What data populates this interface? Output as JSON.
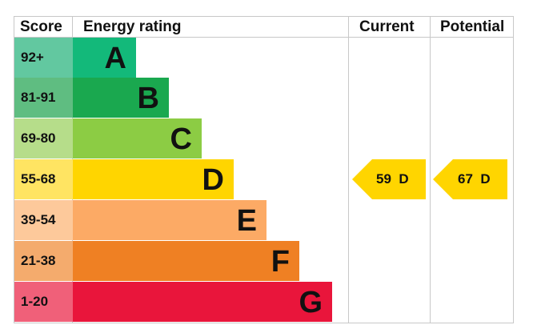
{
  "headers": {
    "score": "Score",
    "energy_rating": "Energy rating",
    "current": "Current",
    "potential": "Potential"
  },
  "bands": [
    {
      "score": "92+",
      "letter": "A",
      "color": "#13b97a",
      "score_bg": "#62c8a0"
    },
    {
      "score": "81-91",
      "letter": "B",
      "color": "#1aa84f",
      "score_bg": "#5fbd81"
    },
    {
      "score": "69-80",
      "letter": "C",
      "color": "#8ccc44",
      "score_bg": "#b6dd8a"
    },
    {
      "score": "55-68",
      "letter": "D",
      "color": "#ffd500",
      "score_bg": "#ffe462"
    },
    {
      "score": "39-54",
      "letter": "E",
      "color": "#fcaa65",
      "score_bg": "#fdc99b"
    },
    {
      "score": "21-38",
      "letter": "F",
      "color": "#ef8023",
      "score_bg": "#f4ab6d"
    },
    {
      "score": "1-20",
      "letter": "G",
      "color": "#e9153b",
      "score_bg": "#f06079"
    }
  ],
  "current": {
    "value": 59,
    "band": "D",
    "label": "59  D",
    "color": "#ffd500"
  },
  "potential": {
    "value": 67,
    "band": "D",
    "label": "67  D",
    "color": "#ffd500"
  },
  "chart_data": {
    "type": "bar",
    "categories": [
      "92+",
      "81-91",
      "69-80",
      "55-68",
      "39-54",
      "21-38",
      "1-20"
    ],
    "band_letters": [
      "A",
      "B",
      "C",
      "D",
      "E",
      "F",
      "G"
    ],
    "current_score": 59,
    "current_band": "D",
    "potential_score": 67,
    "potential_band": "D"
  }
}
